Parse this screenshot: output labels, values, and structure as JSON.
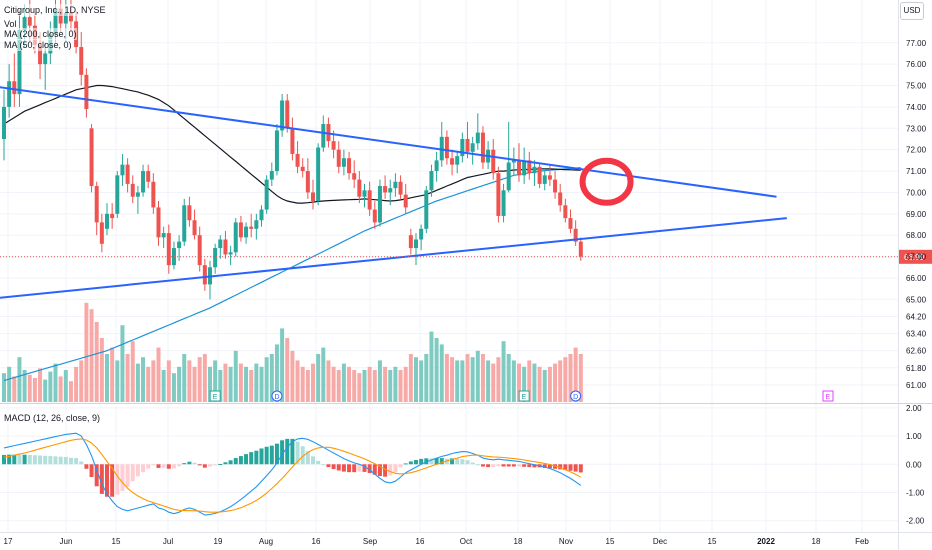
{
  "legend": {
    "title": "Citigroup, Inc., 1D, NYSE",
    "vol": "Vol",
    "ma1": "MA (200, close, 0)",
    "ma2": "MA (50, close, 0)",
    "macd": "MACD (12, 26, close, 9)"
  },
  "currency_badge": "USD",
  "colors": {
    "up": "#26a69a",
    "down": "#ef5350",
    "vol_up": "#7fcbc2",
    "vol_down": "#f7a9a7",
    "trendline": "#2962ff",
    "ma200": "#1c93d8",
    "ma50": "#131722",
    "macd_line": "#2196f3",
    "signal_line": "#ff9800",
    "annotation_circle": "#f23645",
    "last_price_bg": "#ef5350"
  },
  "chart_data": {
    "type": "candlestick",
    "price_axis": {
      "ylim": [
        60.2,
        79.0
      ],
      "ticks": [
        "77.00",
        "76.00",
        "75.00",
        "74.00",
        "73.00",
        "72.00",
        "71.00",
        "70.00",
        "69.00",
        "68.00",
        "67.00",
        "66.00",
        "65.00",
        "64.20",
        "63.40",
        "62.60",
        "61.80",
        "61.00"
      ]
    },
    "last_price": "66.99",
    "macd_axis": {
      "ylim": [
        -2.4,
        2.1
      ],
      "ticks": [
        "2.00",
        "1.00",
        "0.00",
        "-1.00",
        "-2.00"
      ]
    },
    "x_axis": {
      "tick_labels": [
        "17",
        "Jun",
        "15",
        "Jul",
        "19",
        "Aug",
        "16",
        "Sep",
        "16",
        "Oct",
        "18",
        "Nov",
        "15",
        "Dec",
        "15",
        "2022",
        "18",
        "Feb"
      ]
    },
    "candles": [
      [
        72.5,
        74.8,
        71.5,
        74.0
      ],
      [
        74.0,
        76.0,
        73.5,
        75.2
      ],
      [
        75.2,
        76.5,
        74.0,
        74.6
      ],
      [
        74.6,
        78.5,
        74.0,
        77.6
      ],
      [
        77.6,
        78.8,
        76.8,
        78.2
      ],
      [
        78.2,
        79.0,
        77.0,
        77.8
      ],
      [
        77.8,
        78.4,
        76.5,
        76.9
      ],
      [
        76.9,
        77.5,
        75.3,
        76.0
      ],
      [
        76.0,
        77.0,
        74.8,
        76.5
      ],
      [
        76.5,
        78.0,
        76.0,
        77.4
      ],
      [
        77.4,
        79.0,
        77.0,
        78.6
      ],
      [
        78.6,
        79.0,
        77.5,
        77.9
      ],
      [
        77.9,
        79.0,
        77.0,
        78.4
      ],
      [
        78.4,
        79.0,
        77.5,
        78.0
      ],
      [
        78.0,
        78.5,
        76.5,
        76.8
      ],
      [
        76.8,
        77.5,
        75.0,
        75.5
      ],
      [
        75.5,
        75.8,
        73.5,
        73.9
      ],
      [
        73.0,
        73.2,
        70.0,
        70.3
      ],
      [
        70.3,
        70.5,
        68.0,
        68.6
      ],
      [
        68.6,
        69.0,
        67.2,
        67.6
      ],
      [
        68.3,
        69.5,
        68.0,
        69.0
      ],
      [
        69.0,
        69.5,
        68.3,
        68.8
      ],
      [
        69.0,
        71.0,
        68.8,
        70.8
      ],
      [
        70.8,
        71.8,
        70.3,
        71.3
      ],
      [
        71.3,
        71.6,
        70.0,
        70.4
      ],
      [
        70.4,
        70.8,
        69.5,
        69.8
      ],
      [
        69.8,
        70.3,
        69.0,
        70.0
      ],
      [
        70.0,
        71.3,
        69.8,
        71.0
      ],
      [
        71.0,
        71.3,
        70.2,
        70.5
      ],
      [
        70.5,
        70.9,
        69.0,
        69.3
      ],
      [
        69.3,
        69.6,
        67.5,
        67.9
      ],
      [
        67.9,
        68.4,
        67.4,
        68.1
      ],
      [
        68.1,
        68.5,
        66.2,
        66.6
      ],
      [
        66.6,
        67.7,
        66.4,
        67.4
      ],
      [
        67.4,
        68.0,
        66.8,
        67.7
      ],
      [
        67.7,
        69.7,
        67.5,
        69.4
      ],
      [
        69.4,
        69.8,
        68.4,
        68.7
      ],
      [
        68.7,
        69.2,
        67.8,
        68.0
      ],
      [
        68.0,
        68.4,
        66.3,
        66.6
      ],
      [
        66.6,
        66.9,
        65.4,
        65.7
      ],
      [
        65.7,
        66.8,
        65.0,
        66.5
      ],
      [
        66.5,
        67.6,
        66.2,
        67.4
      ],
      [
        67.4,
        68.0,
        66.9,
        67.8
      ],
      [
        67.8,
        68.2,
        66.9,
        67.1
      ],
      [
        67.1,
        67.5,
        66.6,
        67.2
      ],
      [
        67.2,
        68.8,
        67.0,
        68.6
      ],
      [
        68.6,
        68.9,
        67.7,
        67.9
      ],
      [
        67.9,
        68.6,
        67.6,
        68.4
      ],
      [
        68.4,
        69.0,
        67.9,
        68.3
      ],
      [
        68.3,
        69.0,
        67.8,
        68.7
      ],
      [
        68.7,
        69.4,
        68.4,
        69.2
      ],
      [
        69.2,
        70.8,
        69.0,
        70.6
      ],
      [
        70.6,
        71.4,
        70.3,
        71.0
      ],
      [
        71.0,
        73.2,
        70.8,
        72.9
      ],
      [
        72.9,
        74.6,
        72.6,
        74.3
      ],
      [
        74.3,
        74.6,
        72.8,
        73.0
      ],
      [
        73.0,
        73.5,
        71.5,
        71.8
      ],
      [
        71.8,
        72.4,
        70.9,
        71.2
      ],
      [
        71.2,
        71.6,
        70.7,
        71.0
      ],
      [
        71.0,
        71.6,
        69.7,
        70.0
      ],
      [
        70.0,
        70.6,
        69.2,
        69.6
      ],
      [
        69.6,
        72.3,
        69.4,
        72.1
      ],
      [
        72.1,
        73.6,
        71.9,
        73.2
      ],
      [
        73.2,
        73.5,
        72.1,
        72.4
      ],
      [
        72.4,
        72.9,
        71.6,
        72.0
      ],
      [
        72.0,
        72.4,
        70.9,
        71.2
      ],
      [
        71.2,
        72.0,
        70.8,
        71.6
      ],
      [
        71.6,
        71.9,
        70.6,
        70.9
      ],
      [
        70.9,
        71.5,
        70.2,
        70.6
      ],
      [
        70.6,
        71.0,
        69.5,
        69.8
      ],
      [
        69.8,
        70.4,
        69.3,
        70.1
      ],
      [
        70.1,
        70.5,
        68.9,
        69.2
      ],
      [
        69.2,
        69.6,
        68.3,
        68.6
      ],
      [
        68.6,
        70.6,
        68.4,
        70.3
      ],
      [
        70.3,
        70.8,
        69.7,
        70.0
      ],
      [
        70.0,
        70.6,
        69.4,
        70.2
      ],
      [
        70.2,
        70.9,
        69.8,
        70.5
      ],
      [
        70.5,
        70.8,
        69.7,
        69.9
      ],
      [
        69.9,
        70.4,
        69.0,
        69.3
      ],
      [
        68.0,
        68.3,
        67.1,
        67.4
      ],
      [
        67.4,
        68.1,
        66.6,
        67.8
      ],
      [
        67.8,
        68.5,
        67.3,
        68.3
      ],
      [
        68.3,
        70.3,
        68.1,
        70.1
      ],
      [
        70.1,
        71.3,
        69.8,
        71.0
      ],
      [
        71.0,
        71.9,
        70.5,
        71.5
      ],
      [
        71.5,
        73.3,
        71.2,
        72.6
      ],
      [
        72.6,
        72.9,
        71.3,
        71.6
      ],
      [
        71.6,
        72.0,
        70.8,
        71.3
      ],
      [
        71.3,
        71.9,
        70.9,
        71.7
      ],
      [
        71.7,
        72.8,
        71.4,
        72.5
      ],
      [
        72.5,
        73.3,
        71.6,
        71.9
      ],
      [
        71.9,
        72.6,
        71.3,
        72.3
      ],
      [
        72.3,
        73.7,
        72.0,
        72.8
      ],
      [
        72.8,
        73.1,
        71.1,
        71.4
      ],
      [
        71.4,
        72.4,
        71.1,
        72.0
      ],
      [
        72.0,
        72.5,
        70.6,
        70.9
      ],
      [
        70.9,
        71.2,
        68.6,
        68.9
      ],
      [
        68.9,
        70.4,
        68.6,
        70.1
      ],
      [
        70.1,
        73.3,
        70.0,
        71.4
      ],
      [
        71.4,
        72.1,
        70.8,
        71.5
      ],
      [
        71.5,
        72.3,
        70.5,
        70.8
      ],
      [
        70.8,
        72.1,
        70.4,
        71.5
      ],
      [
        71.5,
        71.9,
        70.6,
        70.9
      ],
      [
        70.9,
        71.5,
        70.3,
        71.2
      ],
      [
        71.2,
        71.4,
        70.2,
        70.4
      ],
      [
        70.4,
        71.1,
        70.1,
        70.8
      ],
      [
        70.8,
        71.3,
        70.3,
        70.6
      ],
      [
        70.6,
        71.0,
        69.7,
        70.0
      ],
      [
        70.0,
        70.4,
        69.1,
        69.4
      ],
      [
        69.4,
        69.7,
        68.6,
        68.8
      ],
      [
        68.8,
        69.2,
        68.1,
        68.3
      ],
      [
        68.3,
        68.7,
        67.5,
        67.7
      ],
      [
        67.7,
        67.9,
        66.8,
        67.0
      ]
    ],
    "ma200": [
      61.2,
      61.27,
      61.34,
      61.41,
      61.48,
      61.55,
      61.62,
      61.69,
      61.76,
      61.83,
      61.9,
      61.97,
      62.04,
      62.11,
      62.18,
      62.25,
      62.32,
      62.39,
      62.46,
      62.53,
      62.6,
      62.7,
      62.8,
      62.9,
      63.0,
      63.1,
      63.2,
      63.3,
      63.4,
      63.5,
      63.6,
      63.7,
      63.8,
      63.9,
      64.0,
      64.1,
      64.2,
      64.3,
      64.4,
      64.5,
      64.6,
      64.72,
      64.84,
      64.96,
      65.08,
      65.2,
      65.32,
      65.44,
      65.56,
      65.68,
      65.8,
      65.92,
      66.04,
      66.16,
      66.28,
      66.4,
      66.52,
      66.64,
      66.76,
      66.88,
      67.0,
      67.12,
      67.24,
      67.36,
      67.48,
      67.6,
      67.72,
      67.84,
      67.96,
      68.08,
      68.2,
      68.3,
      68.4,
      68.5,
      68.6,
      68.7,
      68.8,
      68.9,
      69.0,
      69.1,
      69.2,
      69.3,
      69.4,
      69.5,
      69.6,
      69.68,
      69.76,
      69.84,
      69.92,
      70.0,
      70.08,
      70.16,
      70.24,
      70.32,
      70.4,
      70.48,
      70.56,
      70.64,
      70.72,
      70.8,
      70.84,
      70.88,
      70.92,
      70.96,
      71.0,
      71.02,
      71.04,
      71.06,
      71.08,
      71.1,
      71.12,
      71.14,
      71.16
    ],
    "ma50": [
      73.2,
      73.35,
      73.5,
      73.65,
      73.8,
      73.9,
      74.0,
      74.1,
      74.2,
      74.3,
      74.4,
      74.5,
      74.6,
      74.7,
      74.8,
      74.85,
      74.9,
      74.95,
      75.0,
      75.0,
      74.98,
      74.95,
      74.9,
      74.85,
      74.8,
      74.75,
      74.7,
      74.62,
      74.55,
      74.45,
      74.35,
      74.2,
      74.05,
      73.85,
      73.65,
      73.45,
      73.25,
      73.05,
      72.85,
      72.65,
      72.45,
      72.25,
      72.05,
      71.85,
      71.65,
      71.45,
      71.25,
      71.05,
      70.85,
      70.65,
      70.45,
      70.25,
      70.05,
      69.85,
      69.7,
      69.6,
      69.55,
      69.5,
      69.5,
      69.52,
      69.55,
      69.58,
      69.6,
      69.62,
      69.63,
      69.64,
      69.65,
      69.66,
      69.67,
      69.68,
      69.7,
      69.68,
      69.66,
      69.64,
      69.62,
      69.6,
      69.62,
      69.65,
      69.7,
      69.75,
      69.8,
      69.85,
      69.9,
      70.0,
      70.1,
      70.2,
      70.3,
      70.4,
      70.5,
      70.6,
      70.7,
      70.75,
      70.8,
      70.85,
      70.9,
      70.95,
      71.0,
      71.0,
      71.02,
      71.05,
      71.06,
      71.07,
      71.08,
      71.09,
      71.1,
      71.1,
      71.1,
      71.09,
      71.08,
      71.07,
      71.06,
      71.05,
      71.04
    ],
    "volume": [
      0.18,
      0.22,
      0.16,
      0.28,
      0.2,
      0.17,
      0.15,
      0.21,
      0.14,
      0.19,
      0.24,
      0.16,
      0.2,
      0.13,
      0.22,
      0.26,
      0.62,
      0.58,
      0.5,
      0.4,
      0.3,
      0.34,
      0.26,
      0.48,
      0.3,
      0.38,
      0.24,
      0.28,
      0.22,
      0.26,
      0.34,
      0.2,
      0.26,
      0.18,
      0.22,
      0.3,
      0.26,
      0.22,
      0.28,
      0.3,
      0.22,
      0.26,
      0.2,
      0.24,
      0.22,
      0.32,
      0.24,
      0.22,
      0.2,
      0.24,
      0.22,
      0.28,
      0.3,
      0.36,
      0.46,
      0.4,
      0.32,
      0.26,
      0.22,
      0.2,
      0.24,
      0.3,
      0.34,
      0.26,
      0.22,
      0.2,
      0.24,
      0.22,
      0.2,
      0.18,
      0.2,
      0.22,
      0.2,
      0.26,
      0.22,
      0.2,
      0.22,
      0.2,
      0.22,
      0.3,
      0.28,
      0.26,
      0.3,
      0.44,
      0.4,
      0.36,
      0.3,
      0.28,
      0.26,
      0.26,
      0.3,
      0.28,
      0.32,
      0.3,
      0.26,
      0.24,
      0.28,
      0.38,
      0.3,
      0.26,
      0.24,
      0.22,
      0.26,
      0.24,
      0.22,
      0.2,
      0.22,
      0.24,
      0.26,
      0.28,
      0.3,
      0.34,
      0.3
    ],
    "macd": [
      0.58,
      0.62,
      0.66,
      0.7,
      0.74,
      0.78,
      0.82,
      0.86,
      0.9,
      0.94,
      0.98,
      1.02,
      1.06,
      1.08,
      1.1,
      1.0,
      0.7,
      0.3,
      -0.2,
      -0.7,
      -1.05,
      -1.3,
      -1.5,
      -1.6,
      -1.65,
      -1.6,
      -1.55,
      -1.5,
      -1.45,
      -1.4,
      -1.55,
      -1.6,
      -1.7,
      -1.75,
      -1.7,
      -1.6,
      -1.55,
      -1.6,
      -1.7,
      -1.8,
      -1.78,
      -1.74,
      -1.68,
      -1.6,
      -1.5,
      -1.38,
      -1.25,
      -1.1,
      -0.95,
      -0.8,
      -0.6,
      -0.4,
      -0.2,
      0.05,
      0.35,
      0.6,
      0.8,
      0.9,
      0.92,
      0.88,
      0.8,
      0.7,
      0.6,
      0.5,
      0.4,
      0.3,
      0.2,
      0.12,
      0.05,
      0.0,
      -0.08,
      -0.2,
      -0.35,
      -0.5,
      -0.62,
      -0.66,
      -0.6,
      -0.45,
      -0.3,
      -0.2,
      -0.1,
      0.0,
      0.08,
      0.15,
      0.22,
      0.28,
      0.32,
      0.38,
      0.42,
      0.45,
      0.44,
      0.38,
      0.32,
      0.22,
      0.18,
      0.16,
      0.18,
      0.16,
      0.14,
      0.12,
      0.1,
      0.06,
      0.02,
      -0.02,
      -0.05,
      -0.1,
      -0.15,
      -0.22,
      -0.3,
      -0.4,
      -0.5,
      -0.62,
      -0.75
    ],
    "signal": [
      0.25,
      0.28,
      0.32,
      0.36,
      0.4,
      0.45,
      0.5,
      0.55,
      0.6,
      0.65,
      0.7,
      0.75,
      0.8,
      0.85,
      0.88,
      0.9,
      0.86,
      0.75,
      0.58,
      0.35,
      0.1,
      -0.15,
      -0.42,
      -0.65,
      -0.85,
      -1.0,
      -1.12,
      -1.22,
      -1.3,
      -1.36,
      -1.42,
      -1.48,
      -1.54,
      -1.6,
      -1.63,
      -1.64,
      -1.64,
      -1.65,
      -1.66,
      -1.68,
      -1.7,
      -1.7,
      -1.69,
      -1.67,
      -1.64,
      -1.6,
      -1.54,
      -1.46,
      -1.38,
      -1.28,
      -1.16,
      -1.02,
      -0.86,
      -0.68,
      -0.5,
      -0.3,
      -0.1,
      0.1,
      0.28,
      0.42,
      0.52,
      0.58,
      0.6,
      0.6,
      0.57,
      0.52,
      0.46,
      0.4,
      0.33,
      0.26,
      0.19,
      0.11,
      0.02,
      -0.08,
      -0.18,
      -0.26,
      -0.32,
      -0.34,
      -0.33,
      -0.3,
      -0.25,
      -0.19,
      -0.13,
      -0.06,
      0.0,
      0.06,
      0.12,
      0.17,
      0.22,
      0.27,
      0.3,
      0.32,
      0.32,
      0.3,
      0.28,
      0.26,
      0.25,
      0.24,
      0.22,
      0.2,
      0.18,
      0.15,
      0.12,
      0.09,
      0.06,
      0.03,
      -0.01,
      -0.06,
      -0.12,
      -0.19,
      -0.27,
      -0.36,
      -0.46
    ],
    "trendlines": [
      {
        "from": [
          -9,
          75.2
        ],
        "to": [
          150,
          69.8
        ]
      },
      {
        "from": [
          -12,
          64.8
        ],
        "to": [
          152,
          68.8
        ]
      }
    ],
    "event_markers": [
      {
        "bar": 41,
        "label": "E",
        "kind": "earnings"
      },
      {
        "bar": 53,
        "label": "D",
        "kind": "dividend"
      },
      {
        "bar": 101,
        "label": "E",
        "kind": "earnings"
      },
      {
        "bar": 111,
        "label": "D",
        "kind": "dividend"
      },
      {
        "bar": 160,
        "label": "E",
        "kind": "earnings-upcoming"
      }
    ],
    "annotation": {
      "kind": "circle",
      "bar": 117,
      "price": 70.5
    }
  }
}
